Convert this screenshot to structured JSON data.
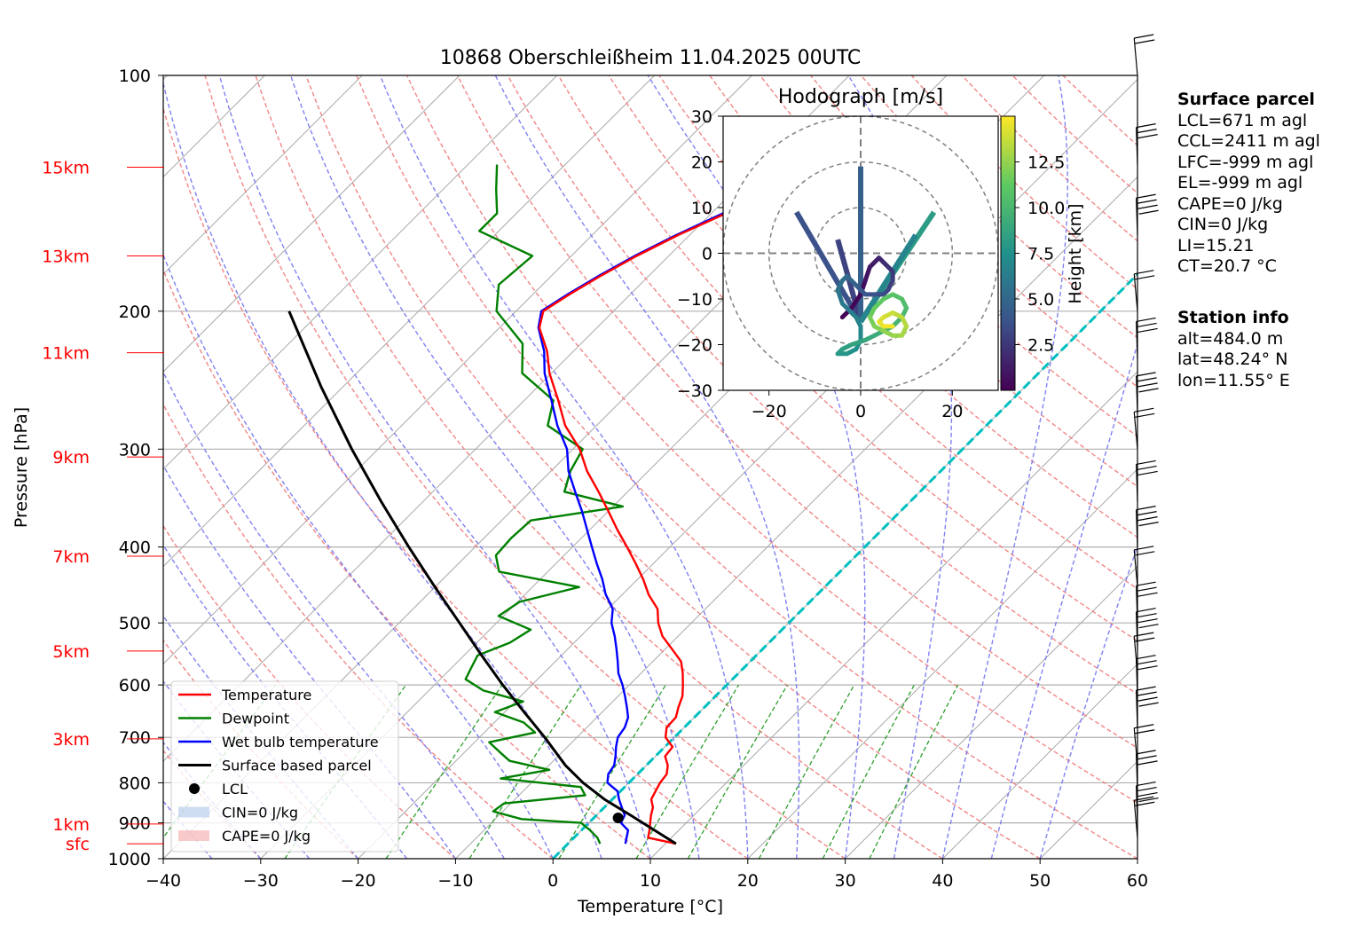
{
  "chart_data": {
    "type": "skew-t",
    "title": "10868 Oberschleißheim 11.04.2025 00UTC",
    "xlabel": "Temperature [°C]",
    "ylabel": "Pressure [hPa]",
    "xlim": [
      -40,
      60
    ],
    "ylim": [
      1000,
      100
    ],
    "x_ticks": [
      "−40",
      "−30",
      "−20",
      "−10",
      "0",
      "10",
      "20",
      "30",
      "40",
      "50",
      "60"
    ],
    "y_ticks": [
      "100",
      "200",
      "300",
      "400",
      "500",
      "600",
      "700",
      "800",
      "900",
      "1000"
    ],
    "height_labels": [
      {
        "label": "15km",
        "p": 131
      },
      {
        "label": "13km",
        "p": 170
      },
      {
        "label": "11km",
        "p": 226
      },
      {
        "label": "9km",
        "p": 307
      },
      {
        "label": "7km",
        "p": 411
      },
      {
        "label": "5km",
        "p": 543
      },
      {
        "label": "3km",
        "p": 703
      },
      {
        "label": "1km",
        "p": 903
      },
      {
        "label": "sfc",
        "p": 957
      }
    ],
    "legend": {
      "position": "lower-left",
      "entries": [
        "Temperature",
        "Dewpoint",
        "Wet bulb temperature",
        "Surface based parcel",
        "LCL",
        "CIN=0 J/kg",
        "CAPE=0 J/kg"
      ]
    },
    "colors": {
      "temperature": "#ff0000",
      "dewpoint": "#008000",
      "wetbulb": "#0000ff",
      "parcel": "#000000",
      "isotherm0": "#00bfbf",
      "dry_adiabat": "#f08080",
      "moist_adiabat": "#7a7af0",
      "mixing_ratio": "#2ca02c",
      "cin": "#aec7e8",
      "cape": "#f4a6a6"
    },
    "series": [
      {
        "name": "Temperature",
        "points": [
          [
            957,
            11.1
          ],
          [
            940,
            7.6
          ],
          [
            920,
            7.0
          ],
          [
            900,
            6.3
          ],
          [
            880,
            5.6
          ],
          [
            860,
            5.0
          ],
          [
            840,
            4.0
          ],
          [
            820,
            3.6
          ],
          [
            800,
            3.2
          ],
          [
            780,
            3.0
          ],
          [
            760,
            2.2
          ],
          [
            740,
            1.0
          ],
          [
            720,
            0.8
          ],
          [
            700,
            -0.9
          ],
          [
            680,
            -1.8
          ],
          [
            660,
            -1.9
          ],
          [
            640,
            -2.7
          ],
          [
            620,
            -3.4
          ],
          [
            600,
            -4.5
          ],
          [
            580,
            -5.7
          ],
          [
            560,
            -7.1
          ],
          [
            540,
            -9.3
          ],
          [
            520,
            -11.6
          ],
          [
            500,
            -13.4
          ],
          [
            480,
            -14.9
          ],
          [
            460,
            -17.3
          ],
          [
            440,
            -19.4
          ],
          [
            420,
            -21.8
          ],
          [
            400,
            -24.4
          ],
          [
            380,
            -27.2
          ],
          [
            360,
            -30.0
          ],
          [
            340,
            -33.0
          ],
          [
            320,
            -36.3
          ],
          [
            300,
            -39.3
          ],
          [
            280,
            -43.2
          ],
          [
            260,
            -46.5
          ],
          [
            240,
            -50.2
          ],
          [
            225,
            -52.7
          ],
          [
            210,
            -55.9
          ],
          [
            200,
            -57.2
          ],
          [
            190,
            -56.2
          ],
          [
            180,
            -54.9
          ],
          [
            170,
            -53.3
          ],
          [
            160,
            -51.2
          ],
          [
            150,
            -48.5
          ],
          [
            140,
            -46.0
          ],
          [
            130,
            -45.0
          ]
        ]
      },
      {
        "name": "Dewpoint",
        "points": [
          [
            957,
            3.3
          ],
          [
            940,
            2.4
          ],
          [
            920,
            0.9
          ],
          [
            900,
            -0.8
          ],
          [
            890,
            -7.3
          ],
          [
            870,
            -11.0
          ],
          [
            850,
            -10.7
          ],
          [
            830,
            -3.2
          ],
          [
            810,
            -4.5
          ],
          [
            790,
            -13.6
          ],
          [
            770,
            -9.5
          ],
          [
            750,
            -14.5
          ],
          [
            730,
            -16.5
          ],
          [
            710,
            -18.5
          ],
          [
            690,
            -14.8
          ],
          [
            670,
            -17.0
          ],
          [
            650,
            -21.0
          ],
          [
            630,
            -19.2
          ],
          [
            610,
            -24.4
          ],
          [
            590,
            -27.4
          ],
          [
            570,
            -28.0
          ],
          [
            550,
            -28.6
          ],
          [
            530,
            -26.6
          ],
          [
            510,
            -25.8
          ],
          [
            490,
            -30.5
          ],
          [
            470,
            -29.8
          ],
          [
            450,
            -25.2
          ],
          [
            430,
            -35.0
          ],
          [
            410,
            -37.0
          ],
          [
            390,
            -37.2
          ],
          [
            370,
            -37.0
          ],
          [
            355,
            -29.0
          ],
          [
            340,
            -36.5
          ],
          [
            320,
            -38.0
          ],
          [
            300,
            -39.0
          ],
          [
            280,
            -45.0
          ],
          [
            260,
            -47.0
          ],
          [
            240,
            -53.0
          ],
          [
            220,
            -56.0
          ],
          [
            200,
            -62.0
          ],
          [
            185,
            -64.5
          ],
          [
            170,
            -64.0
          ],
          [
            158,
            -72.0
          ],
          [
            150,
            -72.0
          ],
          [
            140,
            -74.5
          ],
          [
            130,
            -77.0
          ]
        ]
      },
      {
        "name": "Wet bulb temperature",
        "points": [
          [
            957,
            5.9
          ],
          [
            940,
            5.4
          ],
          [
            920,
            4.8
          ],
          [
            900,
            3.3
          ],
          [
            880,
            2.9
          ],
          [
            860,
            1.8
          ],
          [
            840,
            0.7
          ],
          [
            820,
            -0.3
          ],
          [
            800,
            -2.2
          ],
          [
            780,
            -3.0
          ],
          [
            760,
            -3.3
          ],
          [
            740,
            -4.1
          ],
          [
            720,
            -5.0
          ],
          [
            700,
            -5.8
          ],
          [
            680,
            -6.1
          ],
          [
            660,
            -6.8
          ],
          [
            640,
            -8.0
          ],
          [
            620,
            -9.3
          ],
          [
            600,
            -10.7
          ],
          [
            580,
            -12.3
          ],
          [
            560,
            -13.6
          ],
          [
            540,
            -15.0
          ],
          [
            520,
            -16.5
          ],
          [
            500,
            -18.2
          ],
          [
            480,
            -19.5
          ],
          [
            460,
            -21.7
          ],
          [
            440,
            -23.6
          ],
          [
            420,
            -25.8
          ],
          [
            400,
            -28.0
          ],
          [
            380,
            -30.3
          ],
          [
            360,
            -32.7
          ],
          [
            340,
            -35.4
          ],
          [
            320,
            -38.2
          ],
          [
            300,
            -40.6
          ],
          [
            280,
            -44.0
          ],
          [
            260,
            -47.2
          ],
          [
            240,
            -50.7
          ],
          [
            225,
            -53.0
          ],
          [
            210,
            -56.0
          ],
          [
            200,
            -57.4
          ],
          [
            190,
            -56.4
          ],
          [
            180,
            -55.1
          ],
          [
            170,
            -53.5
          ],
          [
            160,
            -51.4
          ],
          [
            150,
            -48.8
          ],
          [
            140,
            -46.2
          ],
          [
            130,
            -45.2
          ]
        ]
      },
      {
        "name": "Surface based parcel",
        "points": [
          [
            957,
            11.1
          ],
          [
            880,
            3.5
          ],
          [
            840,
            -0.8
          ],
          [
            800,
            -4.7
          ],
          [
            760,
            -8.3
          ],
          [
            700,
            -13.3
          ],
          [
            650,
            -18.0
          ],
          [
            600,
            -23.0
          ],
          [
            550,
            -28.2
          ],
          [
            500,
            -33.8
          ],
          [
            450,
            -40.0
          ],
          [
            400,
            -46.8
          ],
          [
            350,
            -54.3
          ],
          [
            300,
            -62.7
          ],
          [
            250,
            -72.2
          ],
          [
            200,
            -83.3
          ]
        ]
      }
    ],
    "lcl": {
      "p": 887,
      "t": 2.5
    },
    "hodograph": {
      "title": "Hodograph [m/s]",
      "xlim": [
        -30,
        30
      ],
      "ylim": [
        -30,
        30
      ],
      "x_ticks": [
        "−20",
        "0",
        "20"
      ],
      "y_ticks": [
        "30",
        "20",
        "10",
        "0",
        "−10",
        "−20",
        "−30"
      ],
      "rings": [
        10,
        20,
        30
      ],
      "colorbar": {
        "label": "Height [km]",
        "ticks": [
          "2.5",
          "5.0",
          "7.5",
          "10.0",
          "12.5"
        ],
        "range": [
          0,
          15
        ]
      },
      "trace": [
        [
          -4,
          -14
        ],
        [
          -2,
          -12
        ],
        [
          0,
          -9
        ],
        [
          1,
          -6
        ],
        [
          2,
          -3
        ],
        [
          3,
          -2
        ],
        [
          4,
          -1
        ],
        [
          5,
          -2
        ],
        [
          6,
          -3
        ],
        [
          7,
          -4
        ],
        [
          7,
          -6
        ],
        [
          6,
          -8
        ],
        [
          5,
          -9
        ],
        [
          3,
          -9
        ],
        [
          1,
          -9
        ],
        [
          0,
          -8
        ],
        [
          -1,
          -7
        ],
        [
          -2,
          -6
        ],
        [
          -3,
          -5
        ],
        [
          -4,
          -6
        ],
        [
          -5,
          -8
        ],
        [
          -4,
          -11
        ],
        [
          -2,
          -13
        ],
        [
          -1,
          -14
        ],
        [
          0,
          -16
        ],
        [
          0,
          -19
        ],
        [
          -1,
          -21
        ],
        [
          -3,
          -22
        ],
        [
          -5,
          -22
        ],
        [
          -4,
          -21
        ],
        [
          -2,
          -20
        ],
        [
          1,
          -19
        ],
        [
          3,
          -18
        ],
        [
          5,
          -17
        ],
        [
          7,
          -16
        ],
        [
          9,
          -14
        ],
        [
          10,
          -12
        ],
        [
          9,
          -10
        ],
        [
          7,
          -9
        ],
        [
          5,
          -10
        ],
        [
          3,
          -12
        ],
        [
          2,
          -14
        ],
        [
          3,
          -16
        ],
        [
          5,
          -17
        ],
        [
          7,
          -18
        ],
        [
          9,
          -18
        ],
        [
          10,
          -16
        ],
        [
          9,
          -14
        ],
        [
          7,
          -13
        ],
        [
          5,
          -14
        ],
        [
          4,
          -15
        ],
        [
          5,
          -16
        ],
        [
          7,
          -16
        ]
      ]
    },
    "wind_barbs_hpa": [
      100,
      130,
      160,
      200,
      230,
      270,
      300,
      350,
      400,
      450,
      500,
      540,
      580,
      620,
      680,
      760,
      820,
      900,
      940
    ],
    "surface_parcel_title": "Surface parcel",
    "surface_parcel": [
      "LCL=671 m agl",
      "CCL=2411 m agl",
      "LFC=-999 m agl",
      "EL=-999 m agl",
      "CAPE=0 J/kg",
      "CIN=0 J/kg",
      "LI=15.21",
      "CT=20.7 °C"
    ],
    "station_title": "Station info",
    "station": [
      "alt=484.0 m",
      "lat=48.24° N",
      "lon=11.55° E"
    ]
  }
}
